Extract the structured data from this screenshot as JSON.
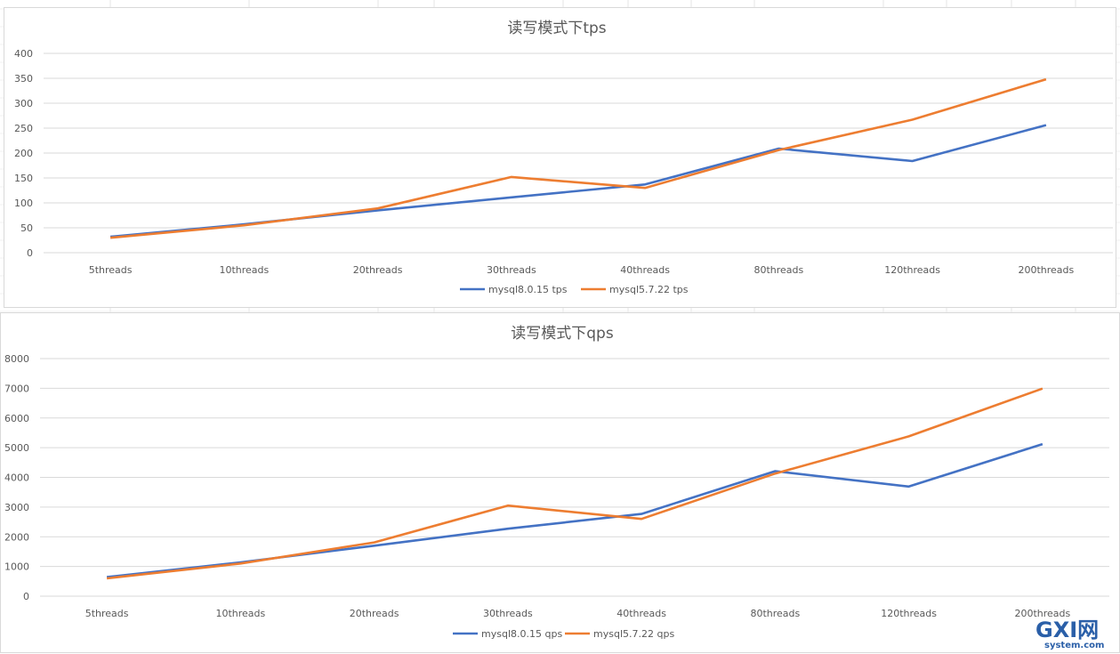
{
  "chart_data": [
    {
      "type": "line",
      "title": "读写模式下tps",
      "categories": [
        "5threads",
        "10threads",
        "20threads",
        "30threads",
        "40threads",
        "80threads",
        "120threads",
        "200threads"
      ],
      "yticks": [
        "0",
        "50",
        "100",
        "150",
        "200",
        "250",
        "300",
        "350",
        "400"
      ],
      "ylim": [
        0,
        400
      ],
      "grid": true,
      "legend_position": "bottom",
      "series": [
        {
          "name": "mysql8.0.15 tps",
          "color": "#4472c4",
          "values": [
            32,
            57,
            85,
            111,
            137,
            209,
            184,
            256
          ]
        },
        {
          "name": "mysql5.7.22 tps",
          "color": "#ed7d31",
          "values": [
            30,
            55,
            89,
            152,
            130,
            206,
            267,
            348
          ]
        }
      ]
    },
    {
      "type": "line",
      "title": "读写模式下qps",
      "categories": [
        "5threads",
        "10threads",
        "20threads",
        "30threads",
        "40threads",
        "80threads",
        "120threads",
        "200threads"
      ],
      "yticks": [
        "0",
        "1000",
        "2000",
        "3000",
        "4000",
        "5000",
        "6000",
        "7000",
        "8000"
      ],
      "ylim": [
        0,
        8000
      ],
      "grid": true,
      "legend_position": "bottom",
      "series": [
        {
          "name": "mysql8.0.15 qps",
          "color": "#4472c4",
          "values": [
            640,
            1140,
            1700,
            2270,
            2770,
            4210,
            3690,
            5120
          ]
        },
        {
          "name": "mysql5.7.22 qps",
          "color": "#ed7d31",
          "values": [
            600,
            1100,
            1810,
            3050,
            2600,
            4130,
            5380,
            6990
          ]
        }
      ]
    }
  ],
  "watermark": {
    "text": "GXI网",
    "subtext": "system.com"
  }
}
